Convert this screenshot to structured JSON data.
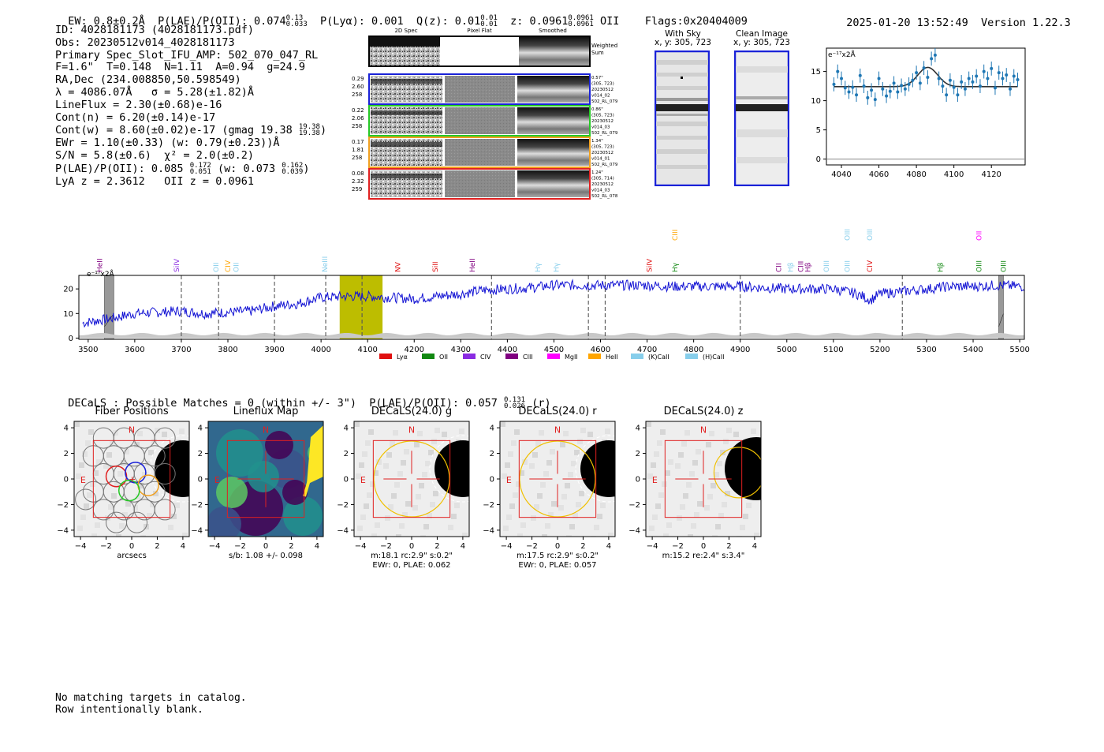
{
  "header": {
    "ew": "EW: 0.8±0.2Å",
    "plae_label": "P(LAE)/P(OII): 0.074",
    "plae_hi": "0.13",
    "plae_lo": "0.033",
    "plya": "P(Lyα): 0.001",
    "qz_label": "Q(z): 0.01",
    "qz_hi": "0.01",
    "qz_lo": "0.01",
    "z_label": "z: 0.0961",
    "z_hi": "0.0961",
    "z_lo": "0.0961",
    "z_line": "OII",
    "flags": "Flags:0x20404009",
    "timestamp": "2025-01-20 13:52:49",
    "version": "Version 1.22.3"
  },
  "info": {
    "id": "ID: 4028181173 (4028181173.pdf)",
    "obs": "Obs: 20230512v014_4028181173",
    "primary": "Primary Spec_Slot_IFU_AMP: 502_070_047_RL",
    "params": "F=1.6\"  T=0.148  N=1.11  A=0.94  g=24.9",
    "radec": "RA,Dec (234.008850,50.598549)",
    "lambda": "λ = 4086.07Å   σ = 5.28(±1.82)Å",
    "lineflux": "LineFlux = 2.30(±0.68)e-16",
    "contn": "Cont(n) = 6.20(±0.14)e-17",
    "contw": "Cont(w) = 8.60(±0.02)e-17 (gmag 19.38",
    "contw_hi": "19.38",
    "contw_lo": "19.38",
    "contw_end": ")",
    "ewr": "EWr = 1.10(±0.33) (w: 0.79(±0.23))Å",
    "sn": "S/N = 5.8(±0.6)  χ² = 2.0(±0.2)",
    "plae": "P(LAE)/P(OII): 0.085",
    "plae_hi": "0.172",
    "plae_lo": "0.051",
    "plae_w": "(w: 0.073",
    "plae_w_hi": "0.162",
    "plae_w_lo": "0.039",
    "plae_w_end": ")",
    "lya": "LyA z = 2.3612   OII z = 0.0961"
  },
  "cutouts": {
    "col_labels": [
      "2D Spec",
      "Pixel Flat",
      "Smoothed"
    ],
    "weighted": "Weighted\nSum",
    "rows": [
      {
        "left": [
          "0.29",
          "2.60",
          "258"
        ],
        "right": [
          "0.57\"",
          "(305, 723)",
          "20230512",
          "v014_02",
          "502_RL_079"
        ],
        "color": "#1a22d8"
      },
      {
        "left": [
          "0.22",
          "2.06",
          "258"
        ],
        "right": [
          "0.86\"",
          "(305, 723)",
          "20230512",
          "v014_03",
          "502_RL_079"
        ],
        "color": "#26c826"
      },
      {
        "left": [
          "0.17",
          "1.81",
          "258"
        ],
        "right": [
          "1.34\"",
          "(305, 723)",
          "20230512",
          "v014_01",
          "502_RL_079"
        ],
        "color": "#f0a020"
      },
      {
        "left": [
          "0.08",
          "2.32",
          "259"
        ],
        "right": [
          "1.24\"",
          "(305, 714)",
          "20230512",
          "v014_03",
          "502_RL_078"
        ],
        "color": "#e02020"
      }
    ],
    "with_sky": "With Sky",
    "with_sky_xy": "x, y: 305, 723",
    "clean": "Clean Image",
    "clean_xy": "x, y: 305, 723"
  },
  "zoom_chart": {
    "type": "scatter",
    "ylabel": "e⁻¹⁷x2Å",
    "xticks": [
      "4040",
      "4060",
      "4080",
      "4100",
      "4120"
    ],
    "yticks": [
      "0",
      "5",
      "10",
      "15"
    ]
  },
  "chart_data": [
    {
      "type": "scatter",
      "ylabel": "e⁻¹⁷x2Å",
      "xlim": [
        4032,
        4138
      ],
      "ylim": [
        -1,
        19
      ],
      "x": [
        4036,
        4038,
        4040,
        4042,
        4044,
        4046,
        4048,
        4050,
        4052,
        4054,
        4056,
        4058,
        4060,
        4062,
        4064,
        4066,
        4068,
        4070,
        4072,
        4074,
        4076,
        4078,
        4080,
        4082,
        4084,
        4086,
        4088,
        4090,
        4092,
        4094,
        4096,
        4098,
        4100,
        4102,
        4104,
        4106,
        4108,
        4110,
        4112,
        4114,
        4116,
        4118,
        4120,
        4122,
        4124,
        4126,
        4128,
        4130,
        4132,
        4134
      ],
      "y": [
        12.8,
        15.0,
        13.8,
        12.2,
        11.5,
        12.3,
        11.0,
        14.3,
        12.5,
        10.5,
        11.8,
        10.2,
        13.8,
        12.0,
        10.8,
        11.6,
        13.0,
        11.5,
        12.6,
        12.0,
        12.8,
        13.5,
        14.8,
        13.0,
        15.6,
        14.0,
        17.2,
        17.8,
        13.8,
        12.5,
        11.0,
        13.5,
        12.3,
        11.0,
        13.2,
        12.0,
        13.8,
        13.2,
        14.2,
        12.5,
        15.0,
        13.8,
        15.5,
        12.2,
        14.8,
        13.8,
        14.4,
        12.0,
        14.2,
        13.6
      ],
      "fit": {
        "baseline": 12.4,
        "amp": 3.3,
        "center": 4086.07,
        "sigma": 5.28
      }
    },
    {
      "type": "line",
      "ylabel": "e⁻¹⁷x2Å",
      "xlim": [
        3480,
        5510
      ],
      "ylim": [
        -0.5,
        25.5
      ],
      "xticks": [
        3500,
        3600,
        3700,
        3800,
        3900,
        4000,
        4100,
        4200,
        4300,
        4400,
        4500,
        4600,
        4700,
        4800,
        4900,
        5000,
        5100,
        5200,
        5300,
        5400,
        5500
      ],
      "yticks": [
        0,
        10,
        20
      ],
      "anchors_x": [
        3470,
        3500,
        3550,
        3600,
        3650,
        3700,
        3750,
        3800,
        3850,
        3900,
        3950,
        4000,
        4050,
        4100,
        4150,
        4200,
        4250,
        4300,
        4350,
        4400,
        4450,
        4500,
        4550,
        4600,
        4650,
        4700,
        4750,
        4800,
        4850,
        4900,
        4950,
        5000,
        5050,
        5100,
        5150,
        5180,
        5200,
        5250,
        5300,
        5350,
        5400,
        5450,
        5500
      ],
      "anchors_y": [
        5.5,
        6.5,
        8.0,
        10.0,
        10.5,
        11.0,
        10.0,
        10.5,
        11.0,
        13.0,
        14.0,
        16.5,
        17.0,
        17.0,
        16.5,
        16.0,
        17.0,
        18.0,
        19.5,
        20.0,
        20.5,
        21.5,
        21.5,
        21.5,
        21.5,
        21.5,
        21.0,
        21.0,
        21.0,
        21.0,
        20.5,
        20.0,
        20.0,
        20.0,
        18.0,
        15.5,
        18.0,
        19.0,
        20.0,
        21.0,
        21.0,
        21.5,
        21.0
      ],
      "highlight_band": [
        4040,
        4132
      ],
      "masked_bands": [
        [
          3535,
          3555
        ],
        [
          5455,
          5465
        ]
      ],
      "dashed_lines": [
        3700,
        3780,
        3900,
        4010,
        4088,
        4366,
        4574,
        4610,
        4900,
        5248
      ],
      "legend": [
        "Lyα",
        "OII",
        "CIV",
        "CIII",
        "MgII",
        "HeII",
        "(K)CaII",
        "(H)CaII"
      ],
      "legend_colors": [
        "#e01010",
        "#118811",
        "#8a2be2",
        "#800080",
        "#ff00ff",
        "#ffa500",
        "#87ceeb",
        "#87ceeb"
      ],
      "line_labels": [
        {
          "x": 3525,
          "name": "HeII",
          "color": "#800080"
        },
        {
          "x": 3690,
          "name": "SiIV",
          "color": "#8a2be2"
        },
        {
          "x": 3775,
          "name": "OII",
          "color": "#87ceeb"
        },
        {
          "x": 3800,
          "name": "CIV",
          "color": "#ffa500"
        },
        {
          "x": 3818,
          "name": "OII",
          "color": "#87ceeb"
        },
        {
          "x": 4008,
          "name": "NeIII",
          "color": "#87ceeb"
        },
        {
          "x": 4165,
          "name": "NV",
          "color": "#e01010"
        },
        {
          "x": 4245,
          "name": "SiII",
          "color": "#e01010"
        },
        {
          "x": 4325,
          "name": "HeII",
          "color": "#800080"
        },
        {
          "x": 4465,
          "name": "Hγ",
          "color": "#87ceeb"
        },
        {
          "x": 4505,
          "name": "Hγ",
          "color": "#87ceeb"
        },
        {
          "x": 4705,
          "name": "SiIV",
          "color": "#e01010"
        },
        {
          "x": 4760,
          "name": "CIII",
          "color": "#ffa500",
          "high": true
        },
        {
          "x": 4760,
          "name": "Hγ",
          "color": "#118811"
        },
        {
          "x": 4983,
          "name": "CII",
          "color": "#800080"
        },
        {
          "x": 5008,
          "name": "Hβ",
          "color": "#87ceeb"
        },
        {
          "x": 5030,
          "name": "CIII",
          "color": "#800080"
        },
        {
          "x": 5045,
          "name": "Hβ",
          "color": "#800080"
        },
        {
          "x": 5085,
          "name": "OIII",
          "color": "#87ceeb"
        },
        {
          "x": 5130,
          "name": "OIII",
          "color": "#87ceeb"
        },
        {
          "x": 5130,
          "name": "OIII",
          "color": "#87ceeb",
          "high": true
        },
        {
          "x": 5178,
          "name": "OIII",
          "color": "#87ceeb",
          "high": true
        },
        {
          "x": 5178,
          "name": "CIV",
          "color": "#e01010"
        },
        {
          "x": 5330,
          "name": "Hβ",
          "color": "#118811"
        },
        {
          "x": 5413,
          "name": "OIII",
          "color": "#118811"
        },
        {
          "x": 5413,
          "name": "OII",
          "color": "#ff00ff",
          "high": true
        },
        {
          "x": 5465,
          "name": "OIII",
          "color": "#118811"
        }
      ]
    }
  ],
  "decals_line": {
    "text": "DECaLS : Possible Matches = 0 (within +/- 3\")  P(LAE)/P(OII): 0.057",
    "hi": "0.131",
    "lo": "0.026",
    "end": "(r)"
  },
  "panels": [
    {
      "title": "Fiber Positions",
      "caption1": "arcsecs",
      "caption2": ""
    },
    {
      "title": "Lineflux Map",
      "caption1": "s/b: 1.08 +/- 0.098",
      "caption2": ""
    },
    {
      "title": "DECaLS(24.0) g",
      "caption1": "m:18.1 rc:2.9\"  s:0.2\"",
      "caption2": "EWr: 0, PLAE: 0.062"
    },
    {
      "title": "DECaLS(24.0) r",
      "caption1": "m:17.5 rc:2.9\"  s:0.2\"",
      "caption2": "EWr: 0, PLAE: 0.057"
    },
    {
      "title": "DECaLS(24.0) z",
      "caption1": "m:15.2  re:2.4\"  s:3.4\"",
      "caption2": ""
    }
  ],
  "panel_axis": {
    "ticks": [
      "−4",
      "−2",
      "0",
      "2",
      "4"
    ],
    "north": "N",
    "east": "E"
  },
  "footer": "No matching targets in catalog.\nRow intentionally blank."
}
